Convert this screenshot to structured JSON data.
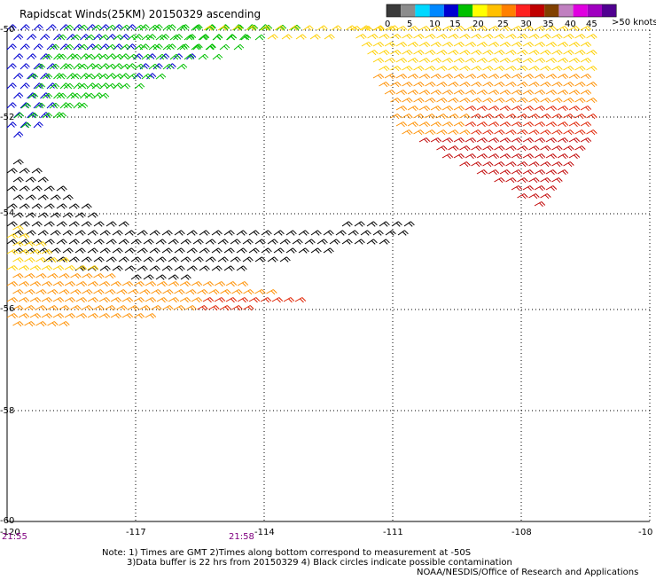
{
  "title": "Rapidscat Winds(25KM) 20150329 ascending",
  "legend": {
    "unit": ">50 knots",
    "tick_labels": [
      "0",
      "5",
      "10",
      "15",
      "20",
      "25",
      "30",
      "35",
      "40",
      "45"
    ],
    "colors": [
      "#3a3a3a",
      "#8c8c8c",
      "#00d8ff",
      "#0088ff",
      "#0000d0",
      "#00c000",
      "#ffff00",
      "#ffc000",
      "#ff8000",
      "#ff2020",
      "#c00000",
      "#804000",
      "#c080c0",
      "#e000e0",
      "#a000c0",
      "#500090"
    ]
  },
  "axes": {
    "x_labels": [
      "-120",
      "-117",
      "-114",
      "-111",
      "-108",
      "-10"
    ],
    "y_labels": [
      "-50",
      "-52",
      "-54",
      "-56",
      "-58",
      "-60"
    ]
  },
  "times": [
    "21:55",
    "21:58"
  ],
  "notes": [
    "Note: 1) Times are GMT 2)Times along bottom correspond to measurement at -50S",
    "3)Data buffer is 22 hrs from 20150329 4) Black circles indicate possible contamination",
    "NOAA/NESDIS/Office of Research and Applications"
  ],
  "colors": {
    "black": "#000000",
    "blue": "#0000d0",
    "green": "#00c000",
    "yellow": "#ffd000",
    "orange": "#ff9000",
    "red": "#e02000",
    "darkred": "#c00000",
    "time_label": "#800080"
  }
}
